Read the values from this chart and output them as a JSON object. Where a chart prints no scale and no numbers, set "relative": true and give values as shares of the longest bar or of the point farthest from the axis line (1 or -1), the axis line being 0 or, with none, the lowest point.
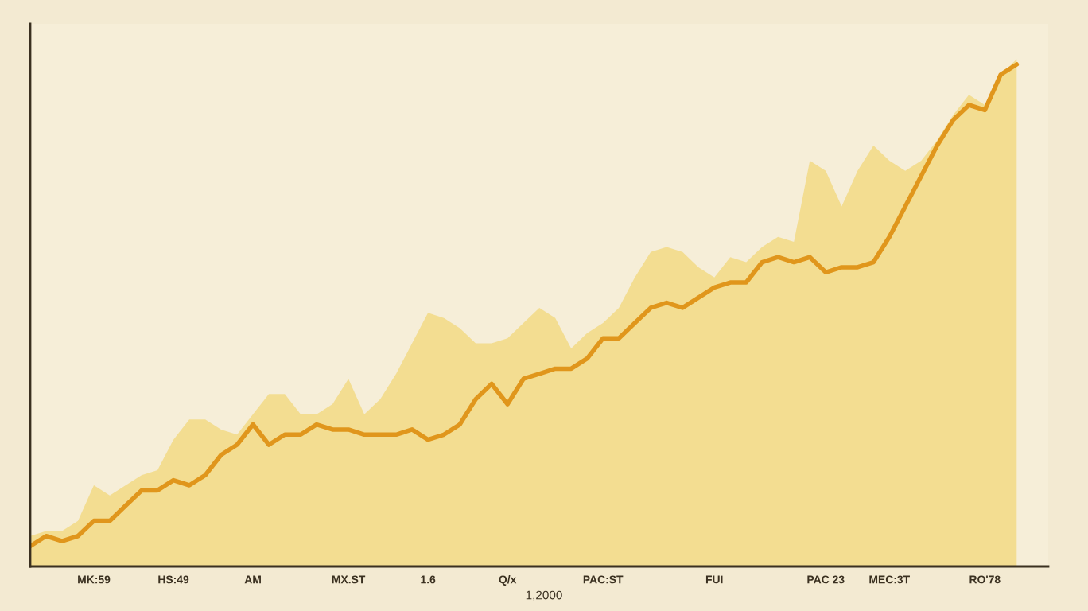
{
  "chart_data": {
    "type": "line",
    "relative": true,
    "categories": [
      null,
      null,
      null,
      null,
      "MK:59",
      null,
      null,
      null,
      null,
      "HS:49",
      null,
      null,
      null,
      null,
      "AM",
      null,
      null,
      null,
      null,
      null,
      "MX.ST",
      null,
      null,
      null,
      null,
      "1.6",
      null,
      null,
      null,
      null,
      "Q/x",
      null,
      null,
      null,
      null,
      null,
      "PAC:ST",
      null,
      null,
      null,
      null,
      null,
      null,
      "FUI",
      null,
      null,
      null,
      null,
      null,
      null,
      "PAC 23",
      null,
      null,
      null,
      "MEC:3T",
      null,
      null,
      null,
      null,
      null,
      "RO'78",
      null,
      null
    ],
    "tick_labels": "x",
    "annotations": [
      "1,2000"
    ],
    "series": [
      {
        "type": "area",
        "color": "#f2d77a",
        "values": [
          0.06,
          0.07,
          0.07,
          0.09,
          0.16,
          0.14,
          0.16,
          0.18,
          0.19,
          0.25,
          0.29,
          0.29,
          0.27,
          0.26,
          0.3,
          0.34,
          0.34,
          0.3,
          0.3,
          0.32,
          0.37,
          0.3,
          0.33,
          0.38,
          0.44,
          0.5,
          0.49,
          0.47,
          0.44,
          0.44,
          0.45,
          0.48,
          0.51,
          0.49,
          0.43,
          0.46,
          0.48,
          0.51,
          0.57,
          0.62,
          0.63,
          0.62,
          0.59,
          0.57,
          0.61,
          0.6,
          0.63,
          0.65,
          0.64,
          0.8,
          0.78,
          0.71,
          0.78,
          0.83,
          0.8,
          0.78,
          0.8,
          0.84,
          0.89,
          0.93,
          0.91,
          0.97,
          1.0
        ]
      },
      {
        "color": "#e0961c",
        "values": [
          0.04,
          0.06,
          0.05,
          0.06,
          0.09,
          0.09,
          0.12,
          0.15,
          0.15,
          0.17,
          0.16,
          0.18,
          0.22,
          0.24,
          0.28,
          0.24,
          0.26,
          0.26,
          0.28,
          0.27,
          0.27,
          0.26,
          0.26,
          0.26,
          0.27,
          0.25,
          0.26,
          0.28,
          0.33,
          0.36,
          0.32,
          0.37,
          0.38,
          0.39,
          0.39,
          0.41,
          0.45,
          0.45,
          0.48,
          0.51,
          0.52,
          0.51,
          0.53,
          0.55,
          0.56,
          0.56,
          0.6,
          0.61,
          0.6,
          0.61,
          0.58,
          0.59,
          0.59,
          0.6,
          0.65,
          0.71,
          0.77,
          0.83,
          0.88,
          0.91,
          0.9,
          0.97,
          0.99
        ]
      }
    ]
  }
}
